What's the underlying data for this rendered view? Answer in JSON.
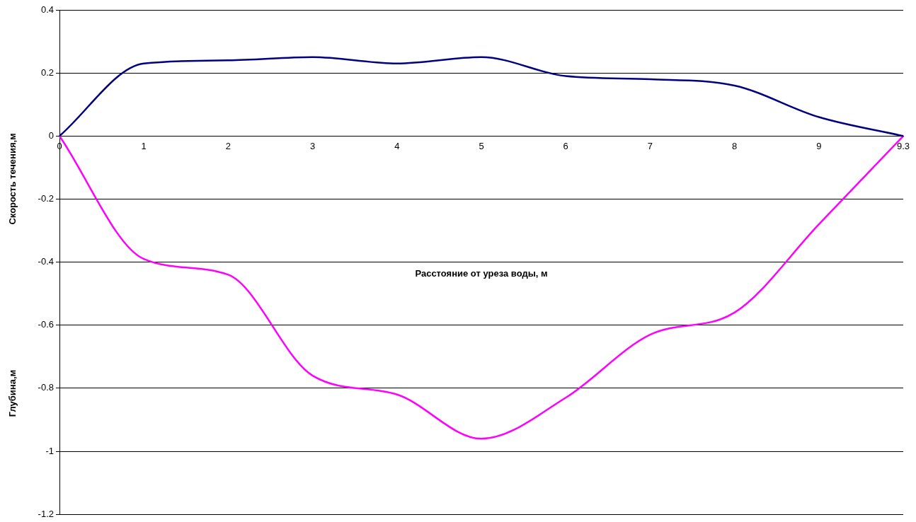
{
  "chart_data": {
    "type": "line",
    "xlabel": "Расстояние от уреза воды, м",
    "ylabel": "Скорость течения,м",
    "annotations": [
      "Глубина,м"
    ],
    "categories": [
      "0",
      "1",
      "2",
      "3",
      "4",
      "5",
      "6",
      "7",
      "8",
      "9",
      "9.3"
    ],
    "series": [
      {
        "color": "#000080",
        "values": [
          0,
          0.23,
          0.24,
          0.25,
          0.23,
          0.25,
          0.19,
          0.18,
          0.16,
          0.06,
          0
        ]
      },
      {
        "color": "#ff00ff",
        "values": [
          0,
          -0.39,
          -0.44,
          -0.76,
          -0.82,
          -0.96,
          -0.83,
          -0.63,
          -0.56,
          -0.28,
          0
        ]
      }
    ],
    "ylim": [
      -1.2,
      0.4
    ],
    "yticks": [
      -1.2,
      -1,
      -0.8,
      -0.6,
      -0.4,
      -0.2,
      0,
      0.2,
      0.4
    ],
    "grid": "y",
    "legend": false,
    "marker": "none"
  }
}
